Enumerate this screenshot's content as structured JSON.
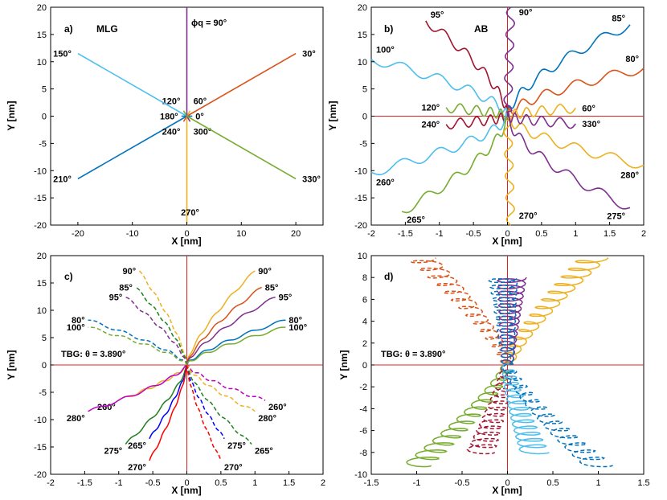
{
  "figure": {
    "colors": {
      "blue": "#0072BD",
      "orange": "#D95319",
      "yellow": "#EDB120",
      "purple": "#7E2F8E",
      "green": "#77AC30",
      "cyan": "#4DBEEE",
      "maroon": "#A2142F",
      "magenta": "#C000C0",
      "red": "#FF0000",
      "darkblue": "#0000FF",
      "darkgreen": "#1E7F1E",
      "axis_red": "#E02020"
    }
  },
  "chart_data": [
    {
      "id": "a",
      "type": "line",
      "panel_label": "a)",
      "title": "MLG",
      "xlabel": "X [nm]",
      "ylabel": "Y [nm]",
      "xlim": [
        -25,
        25
      ],
      "ylim": [
        -20,
        20
      ],
      "xticks": [
        "-20",
        "-10",
        "0",
        "10",
        "20"
      ],
      "xtick_values": [
        -20,
        -10,
        0,
        10,
        20
      ],
      "yticks": [
        "-20",
        "-15",
        "-10",
        "-5",
        "0",
        "5",
        "10",
        "15",
        "20"
      ],
      "ytick_values": [
        -20,
        -15,
        -10,
        -5,
        0,
        5,
        10,
        15,
        20
      ],
      "annotation": "ϕq = 90°",
      "series": [
        {
          "angle": 0,
          "label": "0°",
          "color": "blue",
          "x": [
            0,
            1
          ],
          "y": [
            0,
            0
          ]
        },
        {
          "angle": 30,
          "label": "30°",
          "color": "orange",
          "x": [
            0,
            20
          ],
          "y": [
            0,
            11.5
          ]
        },
        {
          "angle": 60,
          "label": "60°",
          "color": "yellow",
          "x": [
            0,
            0.6
          ],
          "y": [
            0,
            1
          ]
        },
        {
          "angle": 90,
          "label": "",
          "color": "purple",
          "x": [
            0,
            0
          ],
          "y": [
            0,
            20
          ]
        },
        {
          "angle": 120,
          "label": "120°",
          "color": "green",
          "x": [
            0,
            -0.6
          ],
          "y": [
            0,
            1
          ]
        },
        {
          "angle": 150,
          "label": "150°",
          "color": "cyan",
          "x": [
            0,
            -20
          ],
          "y": [
            0,
            11.5
          ]
        },
        {
          "angle": 180,
          "label": "180°",
          "color": "blue",
          "x": [
            0,
            -1
          ],
          "y": [
            0,
            0
          ]
        },
        {
          "angle": 210,
          "label": "210°",
          "color": "blue",
          "x": [
            0,
            -20
          ],
          "y": [
            0,
            -11.5
          ]
        },
        {
          "angle": 240,
          "label": "240°",
          "color": "orange",
          "x": [
            0,
            -0.6
          ],
          "y": [
            0,
            -1
          ]
        },
        {
          "angle": 270,
          "label": "270°",
          "color": "yellow",
          "x": [
            0,
            0
          ],
          "y": [
            0,
            -20
          ]
        },
        {
          "angle": 300,
          "label": "300°",
          "color": "purple",
          "x": [
            0,
            0.6
          ],
          "y": [
            0,
            -1
          ]
        },
        {
          "angle": 330,
          "label": "330°",
          "color": "green",
          "x": [
            0,
            20
          ],
          "y": [
            0,
            -11.5
          ]
        }
      ]
    },
    {
      "id": "b",
      "type": "line",
      "panel_label": "b)",
      "title": "AB",
      "xlabel": "X [nm]",
      "ylabel": "Y [nm]",
      "xlim": [
        -2,
        2
      ],
      "ylim": [
        -20,
        20
      ],
      "xticks": [
        "-2",
        "-1.5",
        "-1",
        "-0.5",
        "0",
        "0.5",
        "1",
        "1.5",
        "2"
      ],
      "xtick_values": [
        -2,
        -1.5,
        -1,
        -0.5,
        0,
        0.5,
        1,
        1.5,
        2
      ],
      "yticks": [
        "-20",
        "-15",
        "-10",
        "-5",
        "0",
        "5",
        "10",
        "15",
        "20"
      ],
      "ytick_values": [
        -20,
        -15,
        -10,
        -5,
        0,
        5,
        10,
        15,
        20
      ],
      "series": [
        {
          "angle": 85,
          "label": "85°",
          "color": "blue",
          "end": [
            1.8,
            16.8
          ]
        },
        {
          "angle": 80,
          "label": "80°",
          "color": "orange",
          "end": [
            2,
            8.8
          ]
        },
        {
          "angle": 60,
          "label": "60°",
          "color": "yellow",
          "end": [
            1,
            1.5
          ]
        },
        {
          "angle": 90,
          "label": "90°",
          "color": "purple",
          "end": [
            0.05,
            20
          ]
        },
        {
          "angle": 95,
          "label": "95°",
          "color": "maroon",
          "end": [
            -1.2,
            17.5
          ]
        },
        {
          "angle": 100,
          "label": "100°",
          "color": "cyan",
          "end": [
            -2,
            10.5
          ]
        },
        {
          "angle": 120,
          "label": "120°",
          "color": "green",
          "end": [
            -0.9,
            1.6
          ]
        },
        {
          "angle": 240,
          "label": "240°",
          "color": "maroon",
          "end": [
            -0.9,
            -1.5
          ]
        },
        {
          "angle": 260,
          "label": "260°",
          "color": "cyan",
          "end": [
            -2,
            -10.3
          ]
        },
        {
          "angle": 265,
          "label": "265°",
          "color": "green",
          "end": [
            -1.55,
            -17.5
          ]
        },
        {
          "angle": 270,
          "label": "270°",
          "color": "yellow",
          "end": [
            0.05,
            -20
          ]
        },
        {
          "angle": 275,
          "label": "275°",
          "color": "purple",
          "end": [
            1.8,
            -16.8
          ]
        },
        {
          "angle": 280,
          "label": "280°",
          "color": "yellow",
          "end": [
            2,
            -9
          ]
        },
        {
          "angle": 330,
          "label": "330°",
          "color": "purple",
          "end": [
            1,
            -1.4
          ]
        }
      ]
    },
    {
      "id": "c",
      "type": "line",
      "panel_label": "c)",
      "annotation": "TBG: θ = 3.890°",
      "xlabel": "X [nm]",
      "ylabel": "Y [nm]",
      "xlim": [
        -2,
        2
      ],
      "ylim": [
        -20,
        20
      ],
      "xticks": [
        "-2",
        "-1.5",
        "-1",
        "-0.5",
        "0",
        "0.5",
        "1",
        "1.5",
        "2"
      ],
      "xtick_values": [
        -2,
        -1.5,
        -1,
        -0.5,
        0,
        0.5,
        1,
        1.5,
        2
      ],
      "yticks": [
        "-20",
        "-15",
        "-10",
        "-5",
        "0",
        "5",
        "10",
        "15",
        "20"
      ],
      "ytick_values": [
        -20,
        -15,
        -10,
        -5,
        0,
        5,
        10,
        15,
        20
      ],
      "series": [
        {
          "angle": 90,
          "label": "90°",
          "color": "yellow",
          "dashed": false,
          "end": [
            1.0,
            17.2
          ]
        },
        {
          "angle": 85,
          "label": "85°",
          "color": "orange",
          "dashed": false,
          "end": [
            1.1,
            14.2
          ]
        },
        {
          "angle": 95,
          "label": "95°",
          "color": "purple",
          "dashed": false,
          "end": [
            1.3,
            12.4
          ]
        },
        {
          "angle": 80,
          "label": "80°",
          "color": "blue",
          "dashed": false,
          "end": [
            1.45,
            8.2
          ]
        },
        {
          "angle": 100,
          "label": "100°",
          "color": "green",
          "dashed": false,
          "end": [
            1.45,
            6.9
          ]
        },
        {
          "angle": 90,
          "label": "90°",
          "color": "yellow",
          "dashed": true,
          "end": [
            -0.7,
            17.2
          ]
        },
        {
          "angle": 85,
          "label": "85°",
          "color": "darkgreen",
          "dashed": true,
          "end": [
            -0.75,
            14.2
          ]
        },
        {
          "angle": 95,
          "label": "95°",
          "color": "purple",
          "dashed": true,
          "end": [
            -0.9,
            12.4
          ]
        },
        {
          "angle": 80,
          "label": "80°",
          "color": "blue",
          "dashed": true,
          "end": [
            -1.45,
            8.2
          ]
        },
        {
          "angle": 100,
          "label": "100°",
          "color": "green",
          "dashed": true,
          "end": [
            -1.45,
            6.9
          ]
        },
        {
          "angle": 260,
          "label": "260°",
          "color": "yellow",
          "dashed": false,
          "end": [
            -1.0,
            -6.5
          ]
        },
        {
          "angle": 280,
          "label": "280°",
          "color": "magenta",
          "dashed": false,
          "end": [
            -1.45,
            -8.5
          ]
        },
        {
          "angle": 275,
          "label": "275°",
          "color": "darkgreen",
          "dashed": false,
          "end": [
            -0.9,
            -14.5
          ]
        },
        {
          "angle": 265,
          "label": "265°",
          "color": "darkblue",
          "dashed": false,
          "end": [
            -0.55,
            -13.5
          ]
        },
        {
          "angle": 270,
          "label": "270°",
          "color": "red",
          "dashed": false,
          "end": [
            -0.55,
            -17.5
          ]
        },
        {
          "angle": 260,
          "label": "260°",
          "color": "magenta",
          "dashed": true,
          "end": [
            1.15,
            -6.5
          ]
        },
        {
          "angle": 280,
          "label": "280°",
          "color": "yellow",
          "dashed": true,
          "end": [
            1.0,
            -8.5
          ]
        },
        {
          "angle": 275,
          "label": "275°",
          "color": "darkblue",
          "dashed": true,
          "end": [
            0.55,
            -13.5
          ]
        },
        {
          "angle": 265,
          "label": "265°",
          "color": "darkgreen",
          "dashed": true,
          "end": [
            0.95,
            -14.5
          ]
        },
        {
          "angle": 270,
          "label": "270°",
          "color": "red",
          "dashed": true,
          "end": [
            0.5,
            -17.5
          ]
        }
      ]
    },
    {
      "id": "d",
      "type": "line",
      "panel_label": "d)",
      "annotation": "TBG: θ = 3.890°",
      "xlabel": "X [nm]",
      "ylabel": "Y [nm]",
      "xlim": [
        -1.5,
        1.5
      ],
      "ylim": [
        -10,
        10
      ],
      "xticks": [
        "-1.5",
        "-1",
        "-0.5",
        "0",
        "0.5",
        "1",
        "1.5"
      ],
      "xtick_values": [
        -1.5,
        -1,
        -0.5,
        0,
        0.5,
        1,
        1.5
      ],
      "yticks": [
        "-10",
        "-8",
        "-6",
        "-4",
        "-2",
        "0",
        "2",
        "4",
        "6",
        "8",
        "10"
      ],
      "ytick_values": [
        -10,
        -8,
        -6,
        -4,
        -2,
        0,
        2,
        4,
        6,
        8,
        10
      ],
      "series": [
        {
          "color": "yellow",
          "dashed": false,
          "end": [
            0.95,
            9.8
          ]
        },
        {
          "color": "orange",
          "dashed": true,
          "end": [
            -0.95,
            9.8
          ]
        },
        {
          "color": "purple",
          "dashed": false,
          "end": [
            0.05,
            8
          ]
        },
        {
          "color": "blue",
          "dashed": true,
          "end": [
            -0.05,
            8
          ]
        },
        {
          "color": "green",
          "dashed": false,
          "end": [
            -1.0,
            -9.2
          ]
        },
        {
          "color": "maroon",
          "dashed": true,
          "end": [
            -0.3,
            -8
          ]
        },
        {
          "color": "cyan",
          "dashed": false,
          "end": [
            0.3,
            -8
          ]
        },
        {
          "color": "blue",
          "dashed": true,
          "end": [
            1.0,
            -9.2
          ]
        }
      ]
    }
  ]
}
